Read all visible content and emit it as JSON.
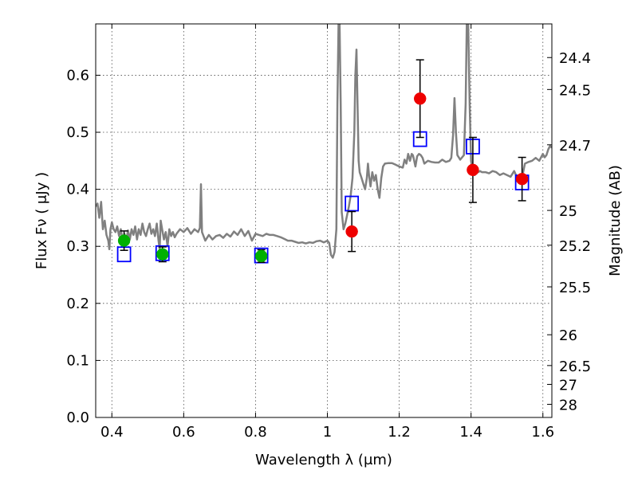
{
  "chart_data": {
    "type": "scatter",
    "xlabel": "Wavelength  λ (μm)",
    "ylabel": "Flux  Fν  ( μJy )",
    "y2label": "Magnitude (AB)",
    "xlim": [
      0.355,
      1.625
    ],
    "ylim": [
      0.0,
      0.69
    ],
    "grid": true,
    "x_ticks": [
      {
        "value": 0.4,
        "label": "0.4"
      },
      {
        "value": 0.6,
        "label": "0.6"
      },
      {
        "value": 0.8,
        "label": "0.8"
      },
      {
        "value": 1.0,
        "label": "1"
      },
      {
        "value": 1.2,
        "label": "1.2"
      },
      {
        "value": 1.4,
        "label": "1.4"
      },
      {
        "value": 1.6,
        "label": "1.6"
      }
    ],
    "y_ticks": [
      {
        "value": 0.0,
        "label": "0.0"
      },
      {
        "value": 0.1,
        "label": "0.1"
      },
      {
        "value": 0.2,
        "label": "0.2"
      },
      {
        "value": 0.3,
        "label": "0.3"
      },
      {
        "value": 0.4,
        "label": "0.4"
      },
      {
        "value": 0.5,
        "label": "0.5"
      },
      {
        "value": 0.6,
        "label": "0.6"
      }
    ],
    "mag_ticks": [
      {
        "flux": 0.631,
        "label": "24.4"
      },
      {
        "flux": 0.575,
        "label": "24.5"
      },
      {
        "flux": 0.478,
        "label": "24.7"
      },
      {
        "flux": 0.363,
        "label": "25"
      },
      {
        "flux": 0.302,
        "label": "25.2"
      },
      {
        "flux": 0.229,
        "label": "25.5"
      },
      {
        "flux": 0.145,
        "label": "26"
      },
      {
        "flux": 0.091,
        "label": "26.5"
      },
      {
        "flux": 0.058,
        "label": "27"
      },
      {
        "flux": 0.023,
        "label": "28"
      }
    ],
    "template_spectrum": {
      "color": "#808080",
      "points": [
        [
          0.355,
          0.37
        ],
        [
          0.36,
          0.375
        ],
        [
          0.365,
          0.35
        ],
        [
          0.37,
          0.378
        ],
        [
          0.375,
          0.33
        ],
        [
          0.38,
          0.345
        ],
        [
          0.385,
          0.32
        ],
        [
          0.39,
          0.31
        ],
        [
          0.393,
          0.295
        ],
        [
          0.396,
          0.33
        ],
        [
          0.4,
          0.342
        ],
        [
          0.405,
          0.33
        ],
        [
          0.41,
          0.325
        ],
        [
          0.415,
          0.335
        ],
        [
          0.42,
          0.318
        ],
        [
          0.425,
          0.33
        ],
        [
          0.43,
          0.31
        ],
        [
          0.435,
          0.322
        ],
        [
          0.44,
          0.31
        ],
        [
          0.445,
          0.328
        ],
        [
          0.45,
          0.312
        ],
        [
          0.455,
          0.33
        ],
        [
          0.46,
          0.32
        ],
        [
          0.465,
          0.335
        ],
        [
          0.47,
          0.312
        ],
        [
          0.475,
          0.33
        ],
        [
          0.48,
          0.32
        ],
        [
          0.485,
          0.34
        ],
        [
          0.49,
          0.325
        ],
        [
          0.495,
          0.318
        ],
        [
          0.5,
          0.33
        ],
        [
          0.505,
          0.34
        ],
        [
          0.51,
          0.322
        ],
        [
          0.515,
          0.33
        ],
        [
          0.52,
          0.318
        ],
        [
          0.525,
          0.34
        ],
        [
          0.53,
          0.31
        ],
        [
          0.533,
          0.295
        ],
        [
          0.536,
          0.345
        ],
        [
          0.54,
          0.33
        ],
        [
          0.545,
          0.312
        ],
        [
          0.55,
          0.325
        ],
        [
          0.555,
          0.3
        ],
        [
          0.56,
          0.33
        ],
        [
          0.565,
          0.318
        ],
        [
          0.57,
          0.325
        ],
        [
          0.575,
          0.316
        ],
        [
          0.58,
          0.322
        ],
        [
          0.59,
          0.33
        ],
        [
          0.6,
          0.325
        ],
        [
          0.61,
          0.332
        ],
        [
          0.62,
          0.322
        ],
        [
          0.63,
          0.33
        ],
        [
          0.64,
          0.325
        ],
        [
          0.645,
          0.332
        ],
        [
          0.648,
          0.409
        ],
        [
          0.651,
          0.325
        ],
        [
          0.66,
          0.31
        ],
        [
          0.67,
          0.32
        ],
        [
          0.68,
          0.312
        ],
        [
          0.69,
          0.318
        ],
        [
          0.7,
          0.32
        ],
        [
          0.71,
          0.315
        ],
        [
          0.72,
          0.322
        ],
        [
          0.73,
          0.317
        ],
        [
          0.74,
          0.326
        ],
        [
          0.75,
          0.32
        ],
        [
          0.76,
          0.33
        ],
        [
          0.77,
          0.318
        ],
        [
          0.78,
          0.327
        ],
        [
          0.79,
          0.31
        ],
        [
          0.8,
          0.322
        ],
        [
          0.81,
          0.32
        ],
        [
          0.82,
          0.318
        ],
        [
          0.83,
          0.322
        ],
        [
          0.84,
          0.32
        ],
        [
          0.85,
          0.32
        ],
        [
          0.86,
          0.318
        ],
        [
          0.87,
          0.316
        ],
        [
          0.88,
          0.313
        ],
        [
          0.89,
          0.31
        ],
        [
          0.9,
          0.31
        ],
        [
          0.91,
          0.308
        ],
        [
          0.92,
          0.306
        ],
        [
          0.93,
          0.307
        ],
        [
          0.94,
          0.305
        ],
        [
          0.95,
          0.307
        ],
        [
          0.96,
          0.306
        ],
        [
          0.97,
          0.309
        ],
        [
          0.98,
          0.31
        ],
        [
          0.99,
          0.307
        ],
        [
          1.0,
          0.31
        ],
        [
          1.005,
          0.306
        ],
        [
          1.01,
          0.285
        ],
        [
          1.015,
          0.28
        ],
        [
          1.02,
          0.29
        ],
        [
          1.025,
          0.33
        ],
        [
          1.028,
          0.55
        ],
        [
          1.031,
          0.69
        ],
        [
          1.034,
          0.69
        ],
        [
          1.037,
          0.55
        ],
        [
          1.04,
          0.36
        ],
        [
          1.045,
          0.33
        ],
        [
          1.05,
          0.34
        ],
        [
          1.055,
          0.355
        ],
        [
          1.06,
          0.37
        ],
        [
          1.065,
          0.39
        ],
        [
          1.07,
          0.42
        ],
        [
          1.075,
          0.5
        ],
        [
          1.078,
          0.6
        ],
        [
          1.081,
          0.645
        ],
        [
          1.084,
          0.55
        ],
        [
          1.087,
          0.45
        ],
        [
          1.09,
          0.43
        ],
        [
          1.095,
          0.42
        ],
        [
          1.1,
          0.41
        ],
        [
          1.105,
          0.4
        ],
        [
          1.11,
          0.42
        ],
        [
          1.113,
          0.445
        ],
        [
          1.116,
          0.425
        ],
        [
          1.12,
          0.405
        ],
        [
          1.125,
          0.43
        ],
        [
          1.13,
          0.415
        ],
        [
          1.135,
          0.425
        ],
        [
          1.14,
          0.4
        ],
        [
          1.145,
          0.385
        ],
        [
          1.15,
          0.42
        ],
        [
          1.155,
          0.44
        ],
        [
          1.16,
          0.445
        ],
        [
          1.17,
          0.446
        ],
        [
          1.18,
          0.446
        ],
        [
          1.19,
          0.443
        ],
        [
          1.2,
          0.44
        ],
        [
          1.21,
          0.438
        ],
        [
          1.215,
          0.452
        ],
        [
          1.22,
          0.445
        ],
        [
          1.225,
          0.462
        ],
        [
          1.23,
          0.45
        ],
        [
          1.235,
          0.462
        ],
        [
          1.238,
          0.46
        ],
        [
          1.24,
          0.455
        ],
        [
          1.245,
          0.44
        ],
        [
          1.25,
          0.458
        ],
        [
          1.255,
          0.462
        ],
        [
          1.26,
          0.46
        ],
        [
          1.265,
          0.455
        ],
        [
          1.27,
          0.445
        ],
        [
          1.28,
          0.45
        ],
        [
          1.29,
          0.448
        ],
        [
          1.3,
          0.447
        ],
        [
          1.31,
          0.447
        ],
        [
          1.32,
          0.452
        ],
        [
          1.33,
          0.448
        ],
        [
          1.34,
          0.45
        ],
        [
          1.345,
          0.455
        ],
        [
          1.35,
          0.495
        ],
        [
          1.354,
          0.56
        ],
        [
          1.358,
          0.5
        ],
        [
          1.362,
          0.46
        ],
        [
          1.37,
          0.452
        ],
        [
          1.38,
          0.46
        ],
        [
          1.385,
          0.55
        ],
        [
          1.388,
          0.69
        ],
        [
          1.392,
          0.69
        ],
        [
          1.396,
          0.55
        ],
        [
          1.4,
          0.45
        ],
        [
          1.405,
          0.43
        ],
        [
          1.41,
          0.425
        ],
        [
          1.415,
          0.435
        ],
        [
          1.42,
          0.43
        ],
        [
          1.425,
          0.432
        ],
        [
          1.43,
          0.43
        ],
        [
          1.44,
          0.43
        ],
        [
          1.45,
          0.428
        ],
        [
          1.46,
          0.432
        ],
        [
          1.47,
          0.43
        ],
        [
          1.48,
          0.425
        ],
        [
          1.49,
          0.428
        ],
        [
          1.5,
          0.425
        ],
        [
          1.51,
          0.422
        ],
        [
          1.52,
          0.432
        ],
        [
          1.53,
          0.418
        ],
        [
          1.54,
          0.425
        ],
        [
          1.545,
          0.43
        ],
        [
          1.55,
          0.445
        ],
        [
          1.56,
          0.448
        ],
        [
          1.57,
          0.45
        ],
        [
          1.58,
          0.455
        ],
        [
          1.59,
          0.45
        ],
        [
          1.6,
          0.462
        ],
        [
          1.605,
          0.456
        ],
        [
          1.61,
          0.46
        ],
        [
          1.615,
          0.47
        ],
        [
          1.62,
          0.476
        ],
        [
          1.625,
          0.473
        ]
      ]
    },
    "model_fluxes": {
      "marker": "open-square",
      "color": "#0000ff",
      "points": [
        {
          "x": 0.434,
          "y": 0.286
        },
        {
          "x": 0.541,
          "y": 0.288
        },
        {
          "x": 0.816,
          "y": 0.284
        },
        {
          "x": 1.068,
          "y": 0.375
        },
        {
          "x": 1.258,
          "y": 0.488
        },
        {
          "x": 1.405,
          "y": 0.475
        },
        {
          "x": 1.542,
          "y": 0.412
        }
      ]
    },
    "observed_optical": {
      "marker": "filled-circle",
      "color": "#00b000",
      "points": [
        {
          "x": 0.434,
          "y": 0.31,
          "err": 0.017
        },
        {
          "x": 0.541,
          "y": 0.286,
          "err": 0.013
        },
        {
          "x": 0.816,
          "y": 0.283,
          "err": 0.011
        }
      ]
    },
    "observed_nir": {
      "marker": "filled-circle",
      "color": "#ee0000",
      "points": [
        {
          "x": 1.068,
          "y": 0.326,
          "err": 0.035
        },
        {
          "x": 1.258,
          "y": 0.559,
          "err": 0.068
        },
        {
          "x": 1.405,
          "y": 0.434,
          "err": 0.057
        },
        {
          "x": 1.542,
          "y": 0.418,
          "err": 0.038
        }
      ]
    }
  }
}
